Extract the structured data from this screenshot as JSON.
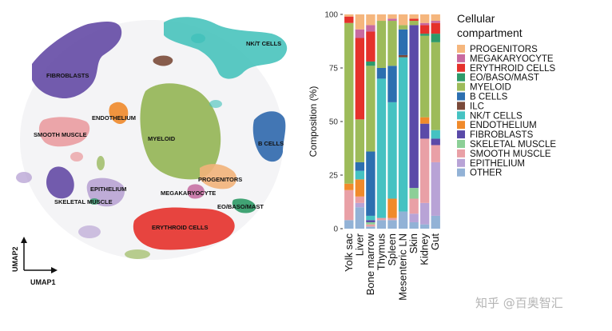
{
  "umap": {
    "axis_x": "UMAP1",
    "axis_y": "UMAP2",
    "clusters": [
      {
        "label": "NK/T CELLS",
        "color": "#3dbfb9"
      },
      {
        "label": "FIBROBLASTS",
        "color": "#5a3fa0"
      },
      {
        "label": "ENDOTHELIUM",
        "color": "#f08a2b"
      },
      {
        "label": "MYELOID",
        "color": "#8db04a"
      },
      {
        "label": "SMOOTH MUSCLE",
        "color": "#e9979b"
      },
      {
        "label": "B CELLS",
        "color": "#2f68ad"
      },
      {
        "label": "EPITHELIUM",
        "color": "#b19ad0"
      },
      {
        "label": "PROGENITORS",
        "color": "#f2b27a"
      },
      {
        "label": "SKELETAL MUSCLE",
        "color": "#5a3fa0"
      },
      {
        "label": "MEGAKARYOCYTE",
        "color": "#c3689f"
      },
      {
        "label": "EO/BASO/MAST",
        "color": "#2e9a66"
      },
      {
        "label": "ERYTHROID CELLS",
        "color": "#e5312b"
      },
      {
        "label": "",
        "color": "#7b4b3a"
      }
    ]
  },
  "chart_data": {
    "type": "bar",
    "stacked": true,
    "ylabel": "Composition (%)",
    "xlabel": "",
    "ylim": [
      0,
      100
    ],
    "yticks": [
      0,
      25,
      50,
      75,
      100
    ],
    "categories": [
      "Yolk sac",
      "Liver",
      "Bone marrow",
      "Thymus",
      "Spleen",
      "Mesenteric LN",
      "Skin",
      "Kidney",
      "Gut"
    ],
    "legend_title": "Cellular\ncompartment",
    "legend_position": "right",
    "series": [
      {
        "name": "OTHER",
        "color": "#92b2d6",
        "values": [
          4,
          10,
          1,
          4,
          4,
          8,
          3,
          2,
          6
        ]
      },
      {
        "name": "EPITHELIUM",
        "color": "#b8a3d6",
        "values": [
          0,
          2,
          0,
          0,
          0,
          0,
          4,
          10,
          25
        ]
      },
      {
        "name": "SMOOTH MUSCLE",
        "color": "#e9a0a6",
        "values": [
          14,
          3,
          1,
          1,
          1,
          0,
          7,
          30,
          8
        ]
      },
      {
        "name": "SKELETAL MUSCLE",
        "color": "#8ccf97",
        "values": [
          0,
          0,
          1,
          0,
          0,
          0,
          5,
          0,
          0
        ]
      },
      {
        "name": "FIBROBLASTS",
        "color": "#5a4aa8",
        "values": [
          0,
          0,
          1,
          0,
          0,
          0,
          76,
          7,
          3
        ]
      },
      {
        "name": "ENDOTHELIUM",
        "color": "#f08a2b",
        "values": [
          3,
          8,
          0,
          0,
          9,
          0,
          0,
          3,
          0
        ]
      },
      {
        "name": "NK/T CELLS",
        "color": "#45c2c2",
        "values": [
          0,
          4,
          2,
          65,
          45,
          72,
          0,
          0,
          4
        ]
      },
      {
        "name": "ILC",
        "color": "#7a4a3a",
        "values": [
          0,
          0,
          0,
          0,
          0,
          1,
          0,
          0,
          0
        ]
      },
      {
        "name": "B CELLS",
        "color": "#2c6fb0",
        "values": [
          0,
          4,
          30,
          5,
          17,
          12,
          0,
          0,
          0
        ]
      },
      {
        "name": "MYELOID",
        "color": "#9dbb5a",
        "values": [
          75,
          20,
          40,
          22,
          21,
          2,
          2,
          38,
          41
        ]
      },
      {
        "name": "EO/BASO/MAST",
        "color": "#2e9a6a",
        "values": [
          0,
          0,
          2,
          0,
          0,
          0,
          0,
          1,
          4
        ]
      },
      {
        "name": "ERYTHROID CELLS",
        "color": "#e5312b",
        "values": [
          3,
          38,
          14,
          0,
          0,
          0,
          1,
          4,
          5
        ]
      },
      {
        "name": "MEGAKARYOCYTE",
        "color": "#c86aa0",
        "values": [
          0,
          4,
          3,
          0,
          1,
          0,
          0,
          1,
          1
        ]
      },
      {
        "name": "PROGENITORS",
        "color": "#f5b67d",
        "values": [
          1,
          7,
          5,
          3,
          2,
          5,
          2,
          4,
          3
        ]
      }
    ]
  },
  "watermark": "知乎 @百奥智汇"
}
